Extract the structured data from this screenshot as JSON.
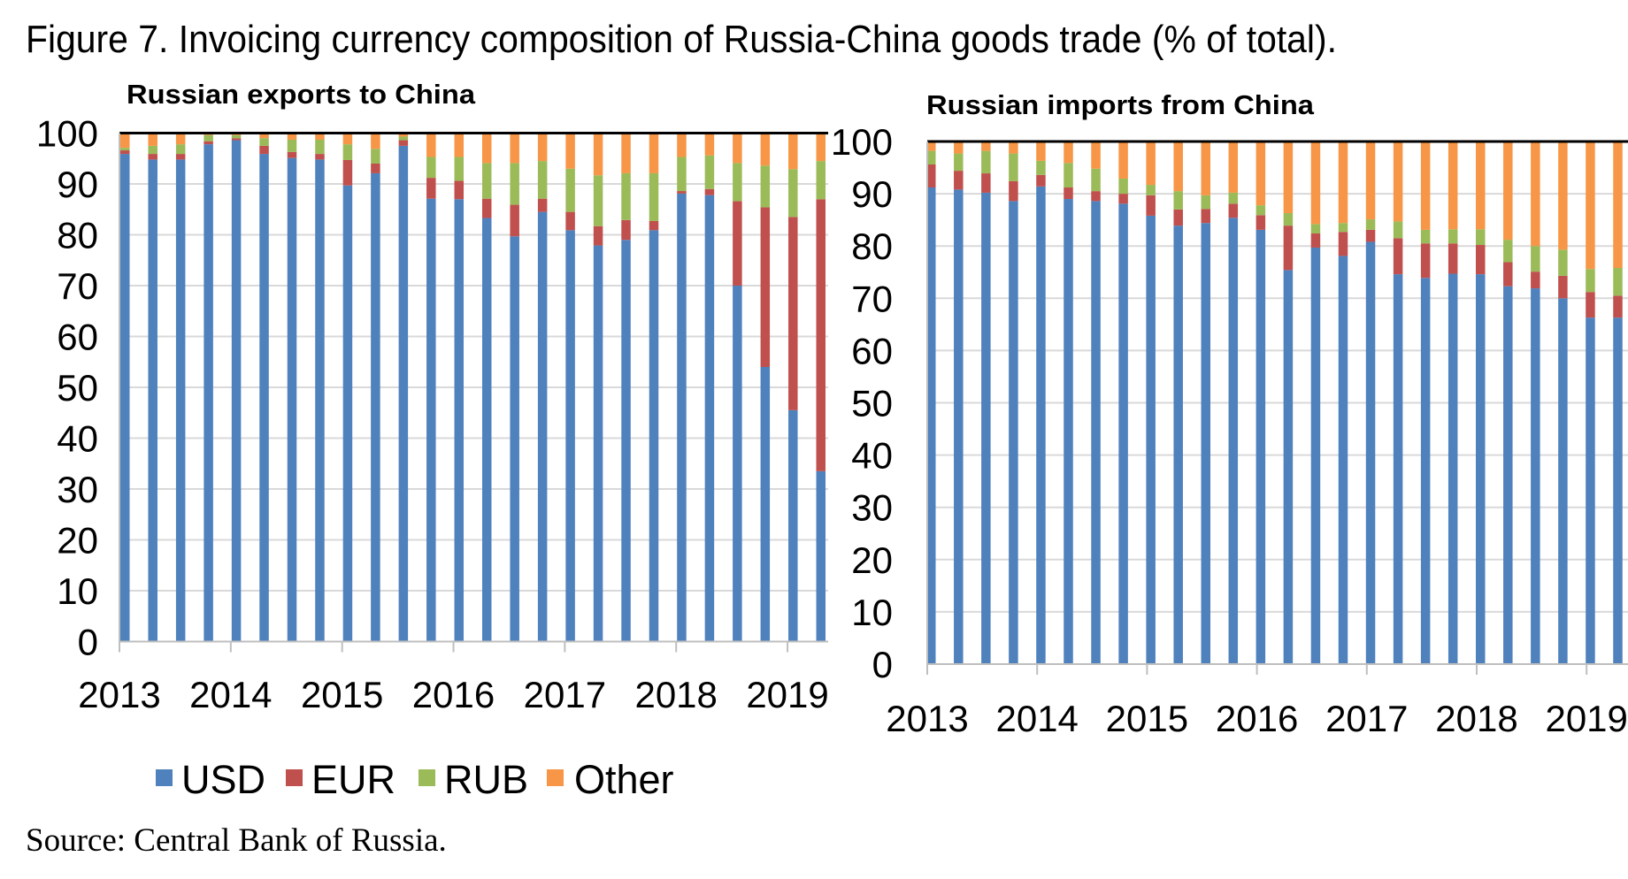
{
  "figure_title": "Figure 7. Invoicing currency composition of Russia-China goods trade (% of total).",
  "source": "Source: Central Bank of Russia.",
  "colors": {
    "USD": "#4F81BD",
    "EUR": "#C0504D",
    "RUB": "#9BBB59",
    "Other": "#F79646"
  },
  "legend": [
    "USD",
    "EUR",
    "RUB",
    "Other"
  ],
  "chart_data": [
    {
      "type": "bar",
      "stacked": true,
      "title": "Russian exports to China",
      "xlabel": "",
      "ylabel": "",
      "ylim": [
        0,
        100
      ],
      "yticks": [
        "0",
        "10",
        "20",
        "30",
        "40",
        "50",
        "60",
        "70",
        "80",
        "90",
        "100"
      ],
      "xticks": [
        "2013",
        "2014",
        "2015",
        "2016",
        "2017",
        "2018",
        "2019"
      ],
      "x": [
        2013.0,
        2013.25,
        2013.5,
        2013.75,
        2014.0,
        2014.25,
        2014.5,
        2014.75,
        2015.0,
        2015.25,
        2015.5,
        2015.75,
        2016.0,
        2016.25,
        2016.5,
        2016.75,
        2017.0,
        2017.25,
        2017.5,
        2017.75,
        2018.0,
        2018.25,
        2018.5,
        2018.75,
        2019.0,
        2019.25
      ],
      "grid": true,
      "series": [
        {
          "name": "USD",
          "values": [
            95.9,
            94.8,
            94.8,
            97.8,
            98.6,
            95.9,
            95.1,
            94.8,
            89.7,
            92.1,
            97.5,
            87.1,
            87.0,
            83.3,
            79.7,
            84.5,
            80.9,
            77.9,
            79.0,
            80.9,
            88.1,
            87.8,
            70.0,
            54.0,
            45.5,
            33.5
          ]
        },
        {
          "name": "EUR",
          "values": [
            0.7,
            1.1,
            1.1,
            0.6,
            0.4,
            1.6,
            1.2,
            1.1,
            5.0,
            1.9,
            1.1,
            4.1,
            3.6,
            3.8,
            6.2,
            2.6,
            3.6,
            3.8,
            3.9,
            1.8,
            0.5,
            1.2,
            16.6,
            31.4,
            38.0,
            53.5
          ]
        },
        {
          "name": "RUB",
          "values": [
            0.5,
            1.6,
            1.9,
            1.2,
            0.6,
            1.5,
            2.4,
            2.8,
            3.1,
            2.9,
            0.7,
            4.1,
            4.7,
            7.0,
            8.2,
            7.4,
            8.5,
            10.0,
            9.2,
            9.4,
            6.7,
            6.6,
            7.5,
            8.2,
            9.4,
            7.5
          ]
        },
        {
          "name": "Other",
          "values": [
            2.9,
            2.5,
            2.2,
            0.4,
            0.4,
            1.0,
            1.3,
            1.3,
            2.2,
            2.9,
            0.7,
            4.7,
            4.7,
            5.9,
            5.9,
            5.5,
            7.0,
            8.3,
            7.9,
            7.9,
            4.7,
            4.4,
            5.9,
            6.4,
            7.0,
            5.5
          ]
        }
      ]
    },
    {
      "type": "bar",
      "stacked": true,
      "title": "Russian imports from China",
      "xlabel": "",
      "ylabel": "",
      "ylim": [
        0,
        100
      ],
      "yticks": [
        "0",
        "10",
        "20",
        "30",
        "40",
        "50",
        "60",
        "70",
        "80",
        "90",
        "100"
      ],
      "xticks": [
        "2013",
        "2014",
        "2015",
        "2016",
        "2017",
        "2018",
        "2019"
      ],
      "x": [
        2013.0,
        2013.25,
        2013.5,
        2013.75,
        2014.0,
        2014.25,
        2014.5,
        2014.75,
        2015.0,
        2015.25,
        2015.5,
        2015.75,
        2016.0,
        2016.25,
        2016.5,
        2016.75,
        2017.0,
        2017.25,
        2017.5,
        2017.75,
        2018.0,
        2018.25,
        2018.5,
        2018.75,
        2019.0,
        2019.25
      ],
      "grid": true,
      "series": [
        {
          "name": "USD",
          "values": [
            91.2,
            90.8,
            90.2,
            88.6,
            91.4,
            89.0,
            88.6,
            88.1,
            85.8,
            83.9,
            84.4,
            85.4,
            83.1,
            75.4,
            79.7,
            78.1,
            80.8,
            74.6,
            73.9,
            74.7,
            74.6,
            72.3,
            71.9,
            70.0,
            66.3,
            66.3
          ]
        },
        {
          "name": "EUR",
          "values": [
            4.4,
            3.6,
            3.7,
            3.8,
            2.2,
            2.2,
            1.9,
            1.9,
            3.9,
            3.1,
            2.7,
            2.7,
            2.8,
            8.5,
            2.7,
            4.6,
            2.3,
            6.9,
            6.6,
            5.8,
            5.6,
            4.6,
            3.2,
            4.3,
            4.9,
            4.2
          ]
        },
        {
          "name": "RUB",
          "values": [
            2.6,
            3.3,
            4.3,
            5.3,
            2.7,
            4.7,
            4.3,
            2.9,
            2.0,
            3.5,
            2.6,
            2.1,
            1.9,
            2.4,
            1.8,
            1.7,
            2.0,
            3.2,
            2.6,
            2.7,
            3.0,
            4.3,
            4.9,
            5.0,
            4.4,
            5.3
          ]
        },
        {
          "name": "Other",
          "values": [
            1.8,
            2.3,
            1.8,
            2.3,
            3.7,
            4.1,
            5.2,
            7.1,
            8.3,
            9.5,
            10.3,
            9.8,
            12.2,
            13.7,
            15.8,
            15.6,
            14.9,
            15.3,
            16.9,
            16.8,
            16.8,
            18.8,
            20.0,
            20.7,
            24.4,
            24.2
          ]
        }
      ]
    }
  ]
}
